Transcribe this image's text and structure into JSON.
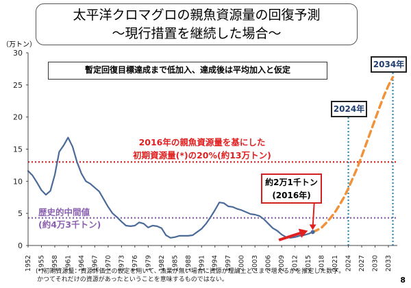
{
  "title": {
    "line1": "太平洋クロマグロの親魚資源量の回復予測",
    "line2": "～現行措置を継続した場合～"
  },
  "note": "暫定回復目標達成まで低加入、達成後は平均加入と仮定",
  "unit_label": "（万トン）",
  "tags": {
    "y2024": "2024年",
    "y2034": "2034年"
  },
  "initial_level_label": {
    "line1": "2016年の親魚資源量を基にした",
    "line2": "初期資源量(*)の20%(約13万トン)"
  },
  "historical_median_label": {
    "line1": "歴史的中間値",
    "line2": "(約4万3千トン)"
  },
  "callout": {
    "line1": "約2万1千トン",
    "line2": "(2016年)"
  },
  "footnote": {
    "line1": "(*)初期資源量：資源評価上の仮定を用いて、漁業が無い場合に資源が理論上どこまで増えるかを推定した数字。",
    "line2": "かつてそれだけの資源があったということを意味するものではない。"
  },
  "page_number": "8",
  "colors": {
    "historical": "#4a6a9a",
    "projection": "#f0923a",
    "initial_level": "#e02020",
    "historical_median": "#8a5fb0",
    "year_marker": "#2a8ab0",
    "arrow": "#e02020"
  },
  "chart_data": {
    "type": "line",
    "xlim": [
      1952,
      2035
    ],
    "ylim": [
      0,
      30
    ],
    "yticks": [
      0,
      5,
      10,
      15,
      20,
      25,
      30
    ],
    "xtick_labels": [
      "1952",
      "1955",
      "1958",
      "1961",
      "1964",
      "1967",
      "1970",
      "1973",
      "1976",
      "1979",
      "1982",
      "1985",
      "1988",
      "1991",
      "1994",
      "1997",
      "2000",
      "2003",
      "2006",
      "2009",
      "2012",
      "2015",
      "2018",
      "2021",
      "2024",
      "2027",
      "2030",
      "2033"
    ],
    "series": [
      {
        "style": "solid",
        "x": [
          1952,
          1953,
          1954,
          1955,
          1956,
          1957,
          1958,
          1959,
          1960,
          1961,
          1962,
          1963,
          1964,
          1965,
          1966,
          1967,
          1968,
          1969,
          1970,
          1971,
          1972,
          1973,
          1974,
          1975,
          1976,
          1977,
          1978,
          1979,
          1980,
          1981,
          1982,
          1983,
          1984,
          1985,
          1986,
          1987,
          1988,
          1989,
          1990,
          1991,
          1992,
          1993,
          1994,
          1995,
          1996,
          1997,
          1998,
          1999,
          2000,
          2001,
          2002,
          2003,
          2004,
          2005,
          2006,
          2007,
          2008,
          2009,
          2010,
          2011,
          2012,
          2013,
          2014,
          2015,
          2016
        ],
        "y": [
          11.6,
          10.9,
          9.8,
          8.6,
          7.9,
          8.5,
          11.0,
          14.6,
          15.6,
          16.8,
          15.4,
          13.0,
          11.2,
          10.0,
          9.6,
          9.0,
          8.4,
          7.2,
          6.0,
          5.0,
          4.4,
          3.7,
          3.1,
          3.0,
          3.1,
          3.6,
          3.4,
          2.8,
          3.1,
          3.0,
          2.7,
          1.6,
          1.2,
          1.3,
          1.5,
          1.5,
          1.5,
          1.6,
          2.1,
          2.6,
          3.4,
          4.4,
          5.5,
          6.7,
          6.6,
          6.1,
          6.0,
          5.7,
          5.5,
          5.2,
          4.9,
          4.8,
          4.6,
          4.1,
          3.4,
          2.7,
          2.3,
          1.7,
          1.3,
          1.2,
          1.3,
          1.5,
          1.6,
          1.8,
          2.1
        ]
      },
      {
        "style": "dashed",
        "x": [
          2016,
          2017,
          2018,
          2019,
          2020,
          2021,
          2022,
          2023,
          2024,
          2025,
          2026,
          2027,
          2028,
          2029,
          2030,
          2031,
          2032,
          2033,
          2034
        ],
        "y": [
          2.1,
          2.4,
          2.8,
          3.5,
          4.3,
          5.2,
          6.3,
          7.5,
          8.9,
          10.5,
          12.1,
          13.9,
          15.8,
          17.7,
          19.6,
          21.5,
          23.3,
          24.9,
          26.2
        ]
      }
    ],
    "reference_lines": [
      {
        "value": 13.0
      },
      {
        "value": 4.3
      }
    ],
    "vertical_markers": [
      2024,
      2034
    ]
  }
}
